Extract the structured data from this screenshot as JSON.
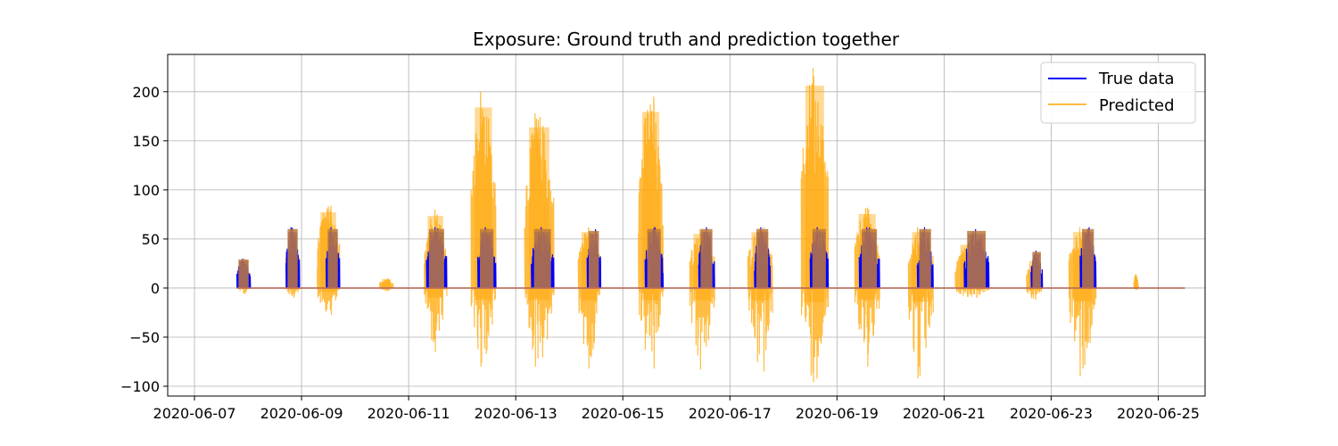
{
  "chart_data": {
    "type": "line",
    "title": "Exposure: Ground truth and prediction together",
    "xlabel": "",
    "ylabel": "",
    "x_range": [
      "2020-06-06T12:00",
      "2020-06-25T21:00"
    ],
    "ylim": [
      -110,
      238
    ],
    "x_ticks": [
      "2020-06-07",
      "2020-06-09",
      "2020-06-11",
      "2020-06-13",
      "2020-06-15",
      "2020-06-17",
      "2020-06-19",
      "2020-06-21",
      "2020-06-23",
      "2020-06-25"
    ],
    "y_ticks": [
      -100,
      -50,
      0,
      50,
      100,
      150,
      200
    ],
    "grid": true,
    "legend_position": "top-right",
    "series": [
      {
        "name": "True data",
        "color": "#0000ff",
        "key": "true",
        "bursts": [
          {
            "start": "2020-06-07T19:00",
            "end": "2020-06-08T01:00",
            "peak": 30
          },
          {
            "start": "2020-06-08T17:00",
            "end": "2020-06-08T23:00",
            "peak": 62
          },
          {
            "start": "2020-06-09T11:00",
            "end": "2020-06-09T17:00",
            "peak": 62
          },
          {
            "start": "2020-06-11T08:00",
            "end": "2020-06-11T17:00",
            "peak": 62
          },
          {
            "start": "2020-06-12T07:00",
            "end": "2020-06-12T15:00",
            "peak": 62
          },
          {
            "start": "2020-06-13T07:00",
            "end": "2020-06-13T17:00",
            "peak": 62
          },
          {
            "start": "2020-06-14T08:00",
            "end": "2020-06-14T14:00",
            "peak": 60
          },
          {
            "start": "2020-06-15T10:00",
            "end": "2020-06-15T18:00",
            "peak": 62
          },
          {
            "start": "2020-06-16T10:00",
            "end": "2020-06-16T17:00",
            "peak": 62
          },
          {
            "start": "2020-06-17T11:00",
            "end": "2020-06-17T18:00",
            "peak": 62
          },
          {
            "start": "2020-06-18T12:00",
            "end": "2020-06-18T20:00",
            "peak": 62
          },
          {
            "start": "2020-06-19T10:00",
            "end": "2020-06-19T19:00",
            "peak": 62
          },
          {
            "start": "2020-06-20T12:00",
            "end": "2020-06-20T19:00",
            "peak": 62
          },
          {
            "start": "2020-06-21T09:00",
            "end": "2020-06-21T20:00",
            "peak": 60
          },
          {
            "start": "2020-06-22T15:00",
            "end": "2020-06-22T20:00",
            "peak": 38
          },
          {
            "start": "2020-06-23T13:00",
            "end": "2020-06-23T20:00",
            "peak": 62
          }
        ]
      },
      {
        "name": "Predicted",
        "color": "#ffa500",
        "key": "pred",
        "bursts": [
          {
            "start": "2020-06-07T19:00",
            "end": "2020-06-08T01:00",
            "peak": 30,
            "low": -6
          },
          {
            "start": "2020-06-08T17:00",
            "end": "2020-06-08T23:00",
            "peak": 60,
            "low": -10
          },
          {
            "start": "2020-06-09T07:00",
            "end": "2020-06-09T17:00",
            "peak": 84,
            "low": -27
          },
          {
            "start": "2020-06-10T11:00",
            "end": "2020-06-10T17:00",
            "peak": 10,
            "low": -3
          },
          {
            "start": "2020-06-11T07:00",
            "end": "2020-06-11T17:00",
            "peak": 80,
            "low": -65
          },
          {
            "start": "2020-06-12T04:00",
            "end": "2020-06-12T15:00",
            "peak": 200,
            "low": -80
          },
          {
            "start": "2020-06-13T04:00",
            "end": "2020-06-13T17:00",
            "peak": 178,
            "low": -80
          },
          {
            "start": "2020-06-14T04:00",
            "end": "2020-06-14T14:00",
            "peak": 62,
            "low": -82
          },
          {
            "start": "2020-06-15T07:00",
            "end": "2020-06-15T18:00",
            "peak": 195,
            "low": -82
          },
          {
            "start": "2020-06-16T06:00",
            "end": "2020-06-16T17:00",
            "peak": 60,
            "low": -83
          },
          {
            "start": "2020-06-17T08:00",
            "end": "2020-06-17T19:00",
            "peak": 62,
            "low": -85
          },
          {
            "start": "2020-06-18T08:00",
            "end": "2020-06-18T20:00",
            "peak": 224,
            "low": -96
          },
          {
            "start": "2020-06-19T08:00",
            "end": "2020-06-19T19:00",
            "peak": 82,
            "low": -80
          },
          {
            "start": "2020-06-20T08:00",
            "end": "2020-06-20T19:00",
            "peak": 62,
            "low": -92
          },
          {
            "start": "2020-06-21T05:00",
            "end": "2020-06-21T20:00",
            "peak": 48,
            "low": -10
          },
          {
            "start": "2020-06-22T13:00",
            "end": "2020-06-22T20:00",
            "peak": 30,
            "low": -12
          },
          {
            "start": "2020-06-23T08:00",
            "end": "2020-06-23T20:00",
            "peak": 62,
            "low": -90
          },
          {
            "start": "2020-06-24T13:00",
            "end": "2020-06-24T15:00",
            "peak": 14,
            "low": -2
          }
        ]
      }
    ],
    "baseline": {
      "start": "2020-06-07T19:00",
      "end": "2020-06-25T12:00",
      "value": 0
    }
  }
}
